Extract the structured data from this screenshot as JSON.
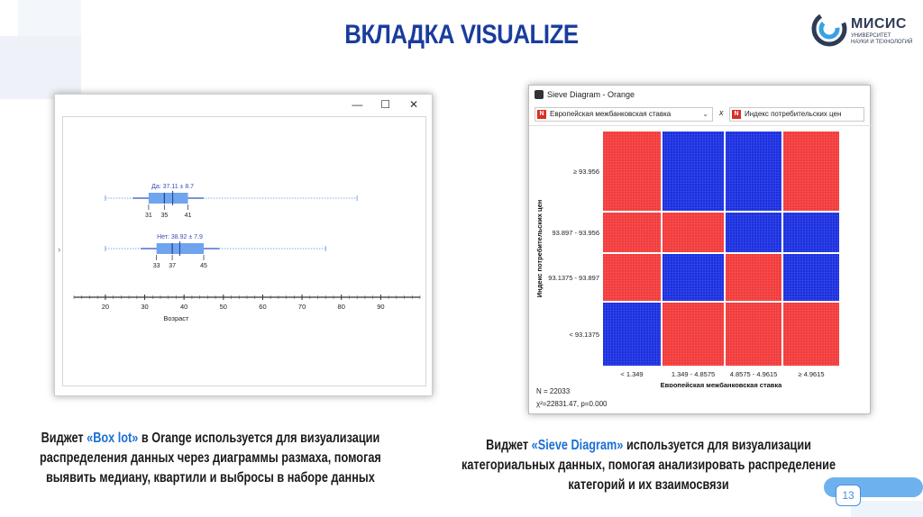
{
  "slide": {
    "title": "ВКЛАДКА VISUALIZE",
    "page_number": "13",
    "accent_color": "#1a3c9e"
  },
  "logo": {
    "name": "МИСИС",
    "subtitle_line1": "УНИВЕРСИТЕТ",
    "subtitle_line2": "НАУКИ И ТЕХНОЛОГИЙ"
  },
  "boxplot_window": {
    "controls": {
      "minimize": "—",
      "maximize": "☐",
      "close": "✕"
    },
    "groups": [
      {
        "label": "Да: 37.11 ± 8.7",
        "q1": "31",
        "median": "35",
        "q3": "41",
        "min": 20,
        "max": 84,
        "mean": 37.11
      },
      {
        "label": "Нет: 38.92 ± 7.9",
        "q1": "33",
        "median": "37",
        "q3": "45",
        "min": 20,
        "max": 76,
        "mean": 38.92
      }
    ],
    "axis_ticks": [
      "20",
      "30",
      "40",
      "50",
      "60",
      "70",
      "80",
      "90"
    ],
    "axis_label": "Возраст",
    "box_color": "#6fa4ee"
  },
  "sieve_window": {
    "title": "Sieve Diagram - Orange",
    "combo_x": "Европейская межбанковская ставка",
    "combo_y": "Индекс потребительских цен",
    "combo_badge": "N",
    "cross_symbol": "x",
    "y_axis_title": "Индекс потребительских цен",
    "x_axis_title": "Европейская межбанковская ставка",
    "y_categories": [
      "≥ 93.956",
      "93.897 - 93.956",
      "93.1375 - 93.897",
      "< 93.1375"
    ],
    "x_categories": [
      "< 1.349",
      "1.349 - 4.8575",
      "4.8575 - 4.9615",
      "≥ 4.9615"
    ],
    "cell_colors": [
      [
        "red",
        "blue",
        "blue",
        "red"
      ],
      [
        "red",
        "red",
        "blue",
        "blue"
      ],
      [
        "red",
        "blue",
        "red",
        "blue"
      ],
      [
        "blue",
        "red",
        "red",
        "red"
      ]
    ],
    "red_color": "#f23a3a",
    "blue_color": "#1a2fe0",
    "n_label": "N = 22033",
    "chi_label": "χ²=22831.47, p=0.000"
  },
  "captions": {
    "left_prefix": "Виджет ",
    "left_highlight": "«Box lot»",
    "left_line1_rest": " в Orange используется для визуализации",
    "left_line2": "распределения данных через диаграммы размаха, помогая",
    "left_line3": "выявить медиану, квартили и выбросы в наборе данных",
    "right_prefix": "Виджет ",
    "right_highlight": "«Sieve Diagram»",
    "right_line1_rest": " используется для визуализации",
    "right_line2": "категориальных данных, помогая анализировать распределение",
    "right_line3": "категорий и их взаимосвязи"
  }
}
